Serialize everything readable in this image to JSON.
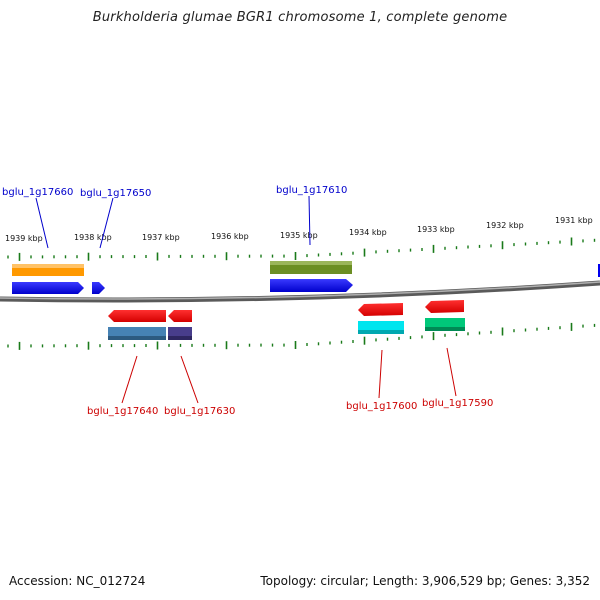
{
  "title": "Burkholderia glumae BGR1 chromosome 1, complete genome",
  "footer": {
    "accession": "Accession: NC_012724",
    "summary": "Topology: circular; Length: 3,906,529 bp; Genes: 3,352"
  },
  "scale_labels": [
    "1939 kbp",
    "1938 kbp",
    "1937 kbp",
    "1936 kbp",
    "1935 kbp",
    "1934 kbp",
    "1933 kbp",
    "1932 kbp",
    "1931 kbp"
  ],
  "colors": {
    "top_label": "#0000cc",
    "bottom_label": "#cc0000",
    "tick": "#1a7a1a",
    "backbone": "#808080"
  },
  "genes_top": [
    {
      "label": "bglu_1g17660",
      "color": "#0000ee",
      "strand": "forward"
    },
    {
      "label": "bglu_1g17650",
      "color": "#0000ee",
      "strand": "forward"
    },
    {
      "label": "bglu_1g17610",
      "color": "#0000ee",
      "strand": "forward"
    }
  ],
  "genes_bottom": [
    {
      "label": "bglu_1g17640",
      "color": "#ee0000",
      "strand": "reverse"
    },
    {
      "label": "bglu_1g17630",
      "color": "#ee0000",
      "strand": "reverse"
    },
    {
      "label": "bglu_1g17600",
      "color": "#ee0000",
      "strand": "reverse"
    },
    {
      "label": "bglu_1g17590",
      "color": "#ee0000",
      "strand": "reverse"
    }
  ],
  "feature_colors_top": [
    "#ff9900",
    "#6b8e23"
  ],
  "feature_colors_bottom": [
    "#4682b4",
    "#483d8b",
    "#00e5ee",
    "#00c87a"
  ]
}
